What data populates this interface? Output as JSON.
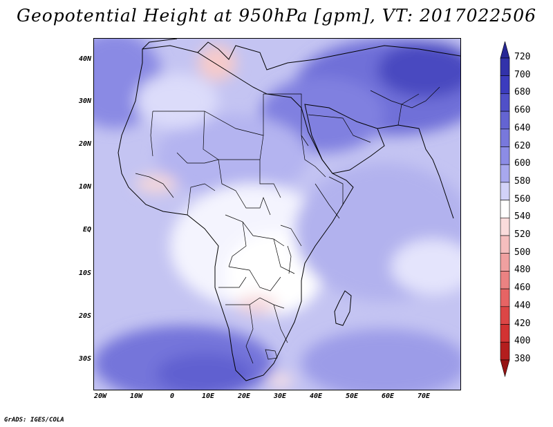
{
  "title": "Geopotential Height at 950hPa [gpm], VT: 2017022506",
  "credit": "GrADS: IGES/COLA",
  "lat_labels": [
    "40N",
    "30N",
    "20N",
    "10N",
    "EQ",
    "10S",
    "20S",
    "30S"
  ],
  "lon_labels": [
    "20W",
    "10W",
    "0",
    "10E",
    "20E",
    "30E",
    "40E",
    "50E",
    "60E",
    "70E"
  ],
  "colorbar": {
    "levels": [
      "720",
      "700",
      "680",
      "660",
      "640",
      "620",
      "600",
      "580",
      "560",
      "540",
      "520",
      "500",
      "480",
      "460",
      "440",
      "420",
      "400",
      "380"
    ],
    "colors": [
      "#282896",
      "#3232aa",
      "#3c3cbe",
      "#5050c8",
      "#6464d2",
      "#7878dc",
      "#8c8ce6",
      "#a8a8ee",
      "#d2d2f8",
      "#ffffff",
      "#fadcdc",
      "#f5bebe",
      "#f0a0a0",
      "#eb8282",
      "#e66464",
      "#dc4646",
      "#d23232",
      "#b41e1e",
      "#961414"
    ]
  }
}
